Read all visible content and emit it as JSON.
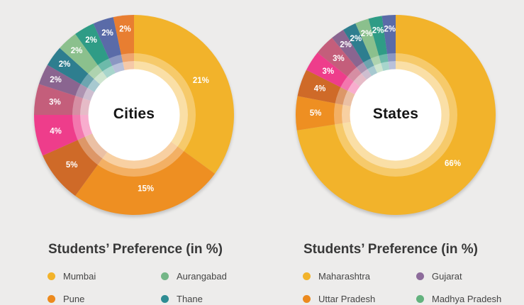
{
  "page": {
    "background": "#EDECEB"
  },
  "panels": [
    {
      "section_title": "Students’ Preference (in %)",
      "chart_data": {
        "type": "pie",
        "subtype": "donut",
        "center_label": "Cities",
        "values_unit": "percent",
        "start_angle_deg": 0,
        "direction": "clockwise",
        "legend_position": "bottom",
        "slices": [
          {
            "name": "Mumbai",
            "value": 21,
            "data_label": "21%",
            "color": "#F2B32B"
          },
          {
            "name": "Pune",
            "value": 15,
            "data_label": "15%",
            "color": "#EE8F22"
          },
          {
            "name": "",
            "value": 5,
            "data_label": "5%",
            "color": "#CF6A28"
          },
          {
            "name": "",
            "value": 4,
            "data_label": "4%",
            "color": "#EE3D8B"
          },
          {
            "name": "",
            "value": 3,
            "data_label": "3%",
            "color": "#C45E7B"
          },
          {
            "name": "",
            "value": 2,
            "data_label": "2%",
            "color": "#8A6590"
          },
          {
            "name": "",
            "value": 2,
            "data_label": "2%",
            "color": "#2E7E8F"
          },
          {
            "name": "",
            "value": 2,
            "data_label": "2%",
            "color": "#8BC08D"
          },
          {
            "name": "",
            "value": 2,
            "data_label": "2%",
            "color": "#2F9C86"
          },
          {
            "name": "",
            "value": 2,
            "data_label": "2%",
            "color": "#5A6BA8"
          },
          {
            "name": "",
            "value": 2,
            "data_label": "2%",
            "color": "#E87E31"
          }
        ]
      },
      "legend": [
        {
          "label": "Mumbai",
          "color": "#F2B32B"
        },
        {
          "label": "Aurangabad",
          "color": "#74B687"
        },
        {
          "label": "Pune",
          "color": "#EC8A1E"
        },
        {
          "label": "Thane",
          "color": "#2E8C93"
        }
      ]
    },
    {
      "section_title": "Students’ Preference (in %)",
      "chart_data": {
        "type": "pie",
        "subtype": "donut",
        "center_label": "States",
        "values_unit": "percent",
        "start_angle_deg": 0,
        "direction": "clockwise",
        "legend_position": "bottom",
        "slices": [
          {
            "name": "Maharashtra",
            "value": 66,
            "data_label": "66%",
            "color": "#F2B32B"
          },
          {
            "name": "Uttar Pradesh",
            "value": 5,
            "data_label": "5%",
            "color": "#EE8F22"
          },
          {
            "name": "",
            "value": 4,
            "data_label": "4%",
            "color": "#CF6A28"
          },
          {
            "name": "",
            "value": 3,
            "data_label": "3%",
            "color": "#EE3D8B"
          },
          {
            "name": "",
            "value": 3,
            "data_label": "3%",
            "color": "#C45E7B"
          },
          {
            "name": "",
            "value": 2,
            "data_label": "2%",
            "color": "#8A6590"
          },
          {
            "name": "",
            "value": 2,
            "data_label": "2%",
            "color": "#2E7E8F"
          },
          {
            "name": "",
            "value": 2,
            "data_label": "2%",
            "color": "#8BC08D"
          },
          {
            "name": "",
            "value": 2,
            "data_label": "2%",
            "color": "#2F9C86"
          },
          {
            "name": "",
            "value": 2,
            "data_label": "2%",
            "color": "#5A6BA8"
          }
        ]
      },
      "legend": [
        {
          "label": "Maharashtra",
          "color": "#F2B32B"
        },
        {
          "label": "Gujarat",
          "color": "#8D6C9B"
        },
        {
          "label": "Uttar Pradesh",
          "color": "#EC8A1E"
        },
        {
          "label": "Madhya Pradesh",
          "color": "#63B27E"
        }
      ]
    }
  ]
}
